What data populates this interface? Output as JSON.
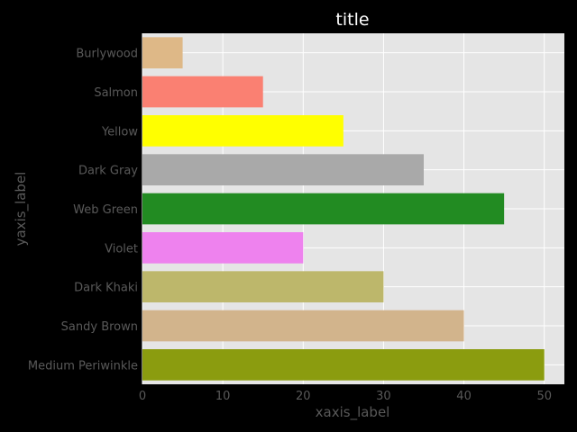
{
  "chart_data": {
    "type": "bar",
    "orientation": "horizontal",
    "title": "title",
    "xlabel": "xaxis_label",
    "ylabel": "yaxis_label",
    "categories": [
      "Burlywood",
      "Salmon",
      "Yellow",
      "Dark Gray",
      "Web Green",
      "Violet",
      "Dark Khaki",
      "Sandy Brown",
      "Medium Periwinkle"
    ],
    "values": [
      5,
      15,
      25,
      35,
      45,
      20,
      30,
      40,
      50
    ],
    "colors": [
      "#deb887",
      "#fa8072",
      "#ffff00",
      "#a9a9a9",
      "#228b22",
      "#ee82ee",
      "#bdb76b",
      "#d2b48c",
      "#8b9c0f"
    ],
    "xlim": [
      0,
      52.5
    ],
    "xticks": [
      0,
      10,
      20,
      30,
      40,
      50
    ],
    "grid": true,
    "legend": "none"
  },
  "style": {
    "background": "#000000",
    "plot_background": "#e5e5e5",
    "grid_color": "#ffffff",
    "title_color": "#ffffff",
    "label_color": "#595959"
  }
}
